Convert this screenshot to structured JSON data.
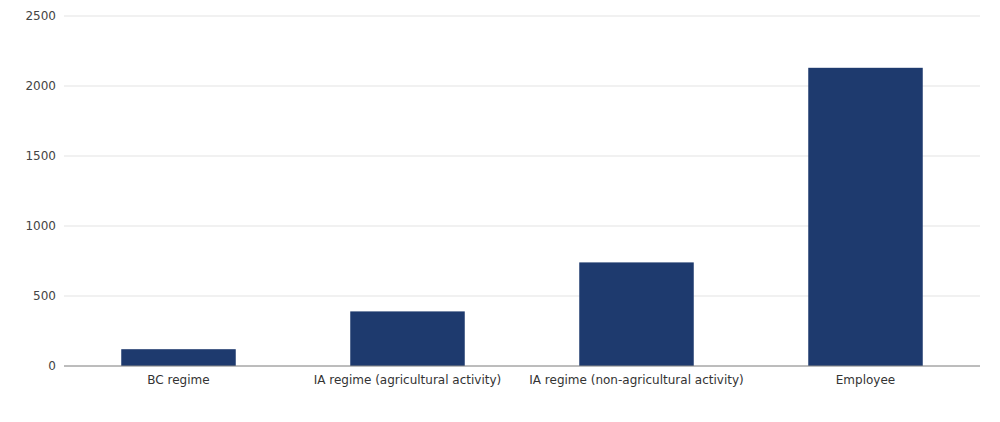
{
  "chart_data": {
    "type": "bar",
    "categories": [
      "BC regime",
      "IA regime (agricultural activity)",
      "IA regime (non-agricultural activity)",
      "Employee"
    ],
    "values": [
      120,
      390,
      740,
      2130
    ],
    "color": "#1e3a6e",
    "ylim": [
      0,
      2500
    ],
    "yticks": [
      0,
      500,
      1000,
      1500,
      2000,
      2500
    ],
    "grid": true
  }
}
